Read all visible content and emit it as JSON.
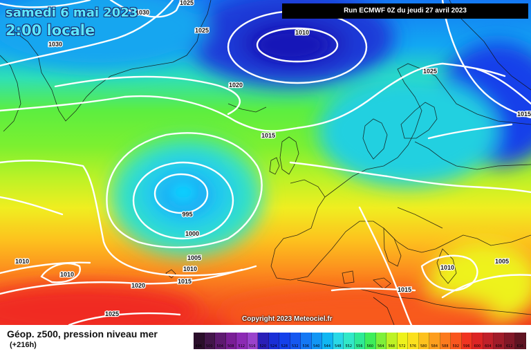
{
  "header": {
    "date_line": "samedi 6 mai 2023",
    "time_line": "2:00 locale",
    "run_info": "Run ECMWF 0Z du jeudi 27 avril 2023"
  },
  "copyright": "Copyright 2023 Meteociel.fr",
  "footer": {
    "field_label": "Géop. z500, pression niveau mer",
    "lead_time": "(+216h)"
  },
  "isobar_labels": [
    {
      "text": "1025",
      "name": "isobar-label-1025-nw"
    },
    {
      "text": "1030",
      "name": "isobar-label-1030-north"
    },
    {
      "text": "1030",
      "name": "isobar-label-1030-west"
    },
    {
      "text": "1025",
      "name": "isobar-label-1025-north"
    },
    {
      "text": "1010",
      "name": "isobar-label-1010-norwegian-sea"
    },
    {
      "text": "1025",
      "name": "isobar-label-1025-scandinavia"
    },
    {
      "text": "1015",
      "name": "isobar-label-1015-russia"
    },
    {
      "text": "1020",
      "name": "isobar-label-1020-atlantic"
    },
    {
      "text": "1015",
      "name": "isobar-label-1015-atlantic"
    },
    {
      "text": "995",
      "name": "isobar-label-995-low-center"
    },
    {
      "text": "1000",
      "name": "isobar-label-1000"
    },
    {
      "text": "1005",
      "name": "isobar-label-1005"
    },
    {
      "text": "1010",
      "name": "isobar-label-1010-azores"
    },
    {
      "text": "1015",
      "name": "isobar-label-1015-azores"
    },
    {
      "text": "1010",
      "name": "isobar-label-1010-sw-a"
    },
    {
      "text": "1010",
      "name": "isobar-label-1010-sw-b"
    },
    {
      "text": "1020",
      "name": "isobar-label-1020-south"
    },
    {
      "text": "1025",
      "name": "isobar-label-1025-south"
    },
    {
      "text": "1015",
      "name": "isobar-label-1015-libya"
    },
    {
      "text": "1010",
      "name": "isobar-label-1010-greece"
    },
    {
      "text": "1005",
      "name": "isobar-label-1005-turkey"
    }
  ],
  "colors": {
    "scale_values": [
      "496",
      "500",
      "504",
      "508",
      "512",
      "516",
      "520",
      "524",
      "528",
      "532",
      "536",
      "540",
      "544",
      "548",
      "552",
      "556",
      "560",
      "564",
      "568",
      "572",
      "576",
      "580",
      "584",
      "588",
      "592",
      "596",
      "600",
      "604",
      "608",
      "612",
      "616"
    ],
    "scale_colors": [
      "#2b0f2b",
      "#43164a",
      "#5e1a70",
      "#7a1e96",
      "#8c2ab4",
      "#9a43cc",
      "#2a1fb8",
      "#1a2fd6",
      "#1440ea",
      "#1557f0",
      "#1478f4",
      "#1296f4",
      "#10b6f2",
      "#2ad8e6",
      "#32e8c8",
      "#2eea96",
      "#3eee5a",
      "#7ef03a",
      "#bdf226",
      "#eef21c",
      "#fbe01e",
      "#fdc11e",
      "#fd9e1e",
      "#fc7a1e",
      "#f9561e",
      "#f03420",
      "#dc2424",
      "#c0202a",
      "#a01c2a",
      "#821828",
      "#601422"
    ]
  }
}
